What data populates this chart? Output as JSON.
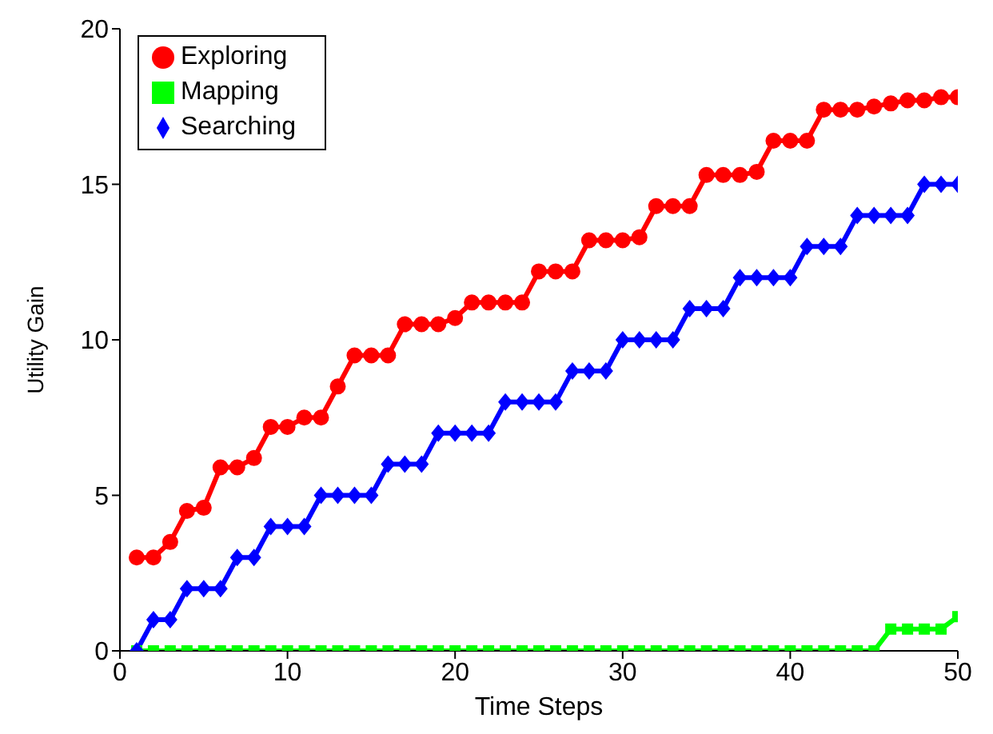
{
  "chart_data": {
    "type": "line",
    "xlabel": "Time Steps",
    "ylabel": "Utility Gain",
    "x": [
      1,
      2,
      3,
      4,
      5,
      6,
      7,
      8,
      9,
      10,
      11,
      12,
      13,
      14,
      15,
      16,
      17,
      18,
      19,
      20,
      21,
      22,
      23,
      24,
      25,
      26,
      27,
      28,
      29,
      30,
      31,
      32,
      33,
      34,
      35,
      36,
      37,
      38,
      39,
      40,
      41,
      42,
      43,
      44,
      45,
      46,
      47,
      48,
      49,
      50
    ],
    "xlim": [
      0,
      50
    ],
    "xticks": [
      0,
      10,
      20,
      30,
      40,
      50
    ],
    "ylim": [
      0,
      20
    ],
    "yticks": [
      0,
      5,
      10,
      15,
      20
    ],
    "grid": false,
    "legend": "top left",
    "line_style": "solid",
    "series": [
      {
        "name": "Exploring",
        "color": "#ff0000",
        "marker": "circle",
        "values": [
          3,
          3,
          3.5,
          4.5,
          4.6,
          5.9,
          5.9,
          6.2,
          7.2,
          7.2,
          7.5,
          7.5,
          8.5,
          9.5,
          9.5,
          9.5,
          10.5,
          10.5,
          10.5,
          10.7,
          11.2,
          11.2,
          11.2,
          11.2,
          12.2,
          12.2,
          12.2,
          13.2,
          13.2,
          13.2,
          13.3,
          14.3,
          14.3,
          14.3,
          15.3,
          15.3,
          15.3,
          15.4,
          16.4,
          16.4,
          16.4,
          17.4,
          17.4,
          17.4,
          17.5,
          17.6,
          17.7,
          17.7,
          17.8,
          17.8
        ]
      },
      {
        "name": "Mapping",
        "color": "#00ff00",
        "marker": "square",
        "values": [
          0,
          0,
          0,
          0,
          0,
          0,
          0,
          0,
          0,
          0,
          0,
          0,
          0,
          0,
          0,
          0,
          0,
          0,
          0,
          0,
          0,
          0,
          0,
          0,
          0,
          0,
          0,
          0,
          0,
          0,
          0,
          0,
          0,
          0,
          0,
          0,
          0,
          0,
          0,
          0,
          0,
          0,
          0,
          0,
          0,
          0.7,
          0.7,
          0.7,
          0.7,
          1.1
        ]
      },
      {
        "name": "Searching",
        "color": "#0000ff",
        "marker": "diamond",
        "values": [
          0,
          1,
          1,
          2,
          2,
          2,
          3,
          3,
          4,
          4,
          4,
          5,
          5,
          5,
          5,
          6,
          6,
          6,
          7,
          7,
          7,
          7,
          8,
          8,
          8,
          8,
          9,
          9,
          9,
          10,
          10,
          10,
          10,
          11,
          11,
          11,
          12,
          12,
          12,
          12,
          13,
          13,
          13,
          14,
          14,
          14,
          14,
          15,
          15,
          15
        ]
      }
    ]
  }
}
